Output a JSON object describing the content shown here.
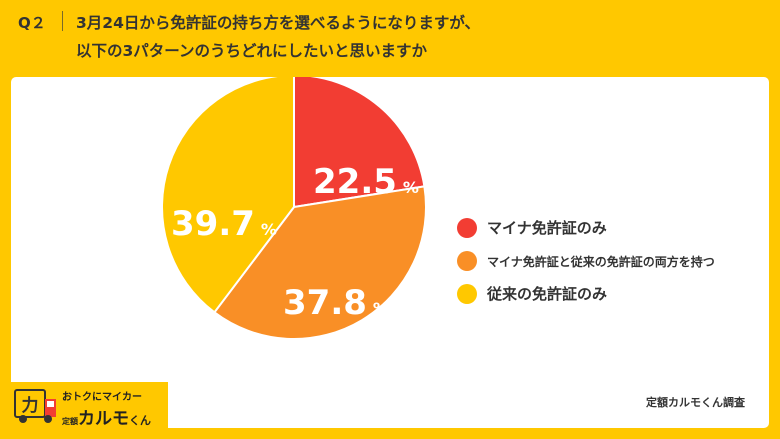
{
  "question": {
    "label": "Q２",
    "line1": "3月24日から免許証の持ち方を選べるようになりますが、",
    "line2": "以下の3パターンのうちどれにしたいと思いますか"
  },
  "chart_data": {
    "type": "pie",
    "slices": [
      {
        "label": "マイナ免許証のみ",
        "value": 22.5,
        "color": "#f23d33"
      },
      {
        "label": "マイナ免許証と従来の免許証の両方を持つ",
        "value": 37.8,
        "color": "#f98f26"
      },
      {
        "label": "従来の免許証のみ",
        "value": 39.7,
        "color": "#ffc800"
      }
    ],
    "unit": "%"
  },
  "source": "定額カルモくん調査",
  "logo": {
    "tagline": "おトクにマイカー",
    "brand_prefix": "定額",
    "brand_name": "カルモ",
    "brand_suffix": "くん"
  }
}
